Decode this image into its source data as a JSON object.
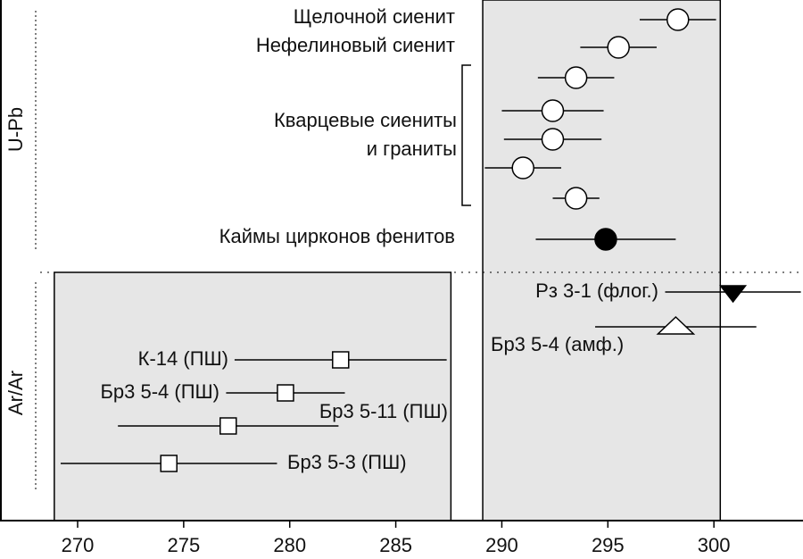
{
  "chart_data": {
    "type": "errorbar",
    "xlim": [
      266.34,
      304.2
    ],
    "xticks": [
      270,
      275,
      280,
      285,
      290,
      295,
      300
    ],
    "groups": [
      {
        "name": "U-Pb"
      },
      {
        "name": "Ar/Ar"
      }
    ],
    "bands": [
      {
        "range": [
          268.9,
          287.6
        ]
      },
      {
        "range": [
          289.1,
          300.3
        ]
      }
    ],
    "series": [
      {
        "name": "Щелочной сиенит",
        "marker": "circle",
        "filled": false,
        "color": "#000000",
        "values": [
          298.3
        ],
        "errors": [
          1.8
        ]
      },
      {
        "name": "Нефелиновый сиенит",
        "marker": "circle",
        "filled": false,
        "color": "#000000",
        "values": [
          295.5
        ],
        "errors": [
          1.8
        ]
      },
      {
        "name": [
          "Кварцевые сиениты",
          "и граниты"
        ],
        "marker": "circle",
        "filled": false,
        "color": "#000000",
        "values": [
          293.5,
          292.4,
          292.4,
          291.0,
          293.5
        ],
        "errors": [
          1.8,
          2.4,
          2.3,
          1.8,
          1.1
        ]
      },
      {
        "name": "Каймы цирконов фенитов",
        "marker": "circle",
        "filled": true,
        "color": "#000000",
        "values": [
          294.9
        ],
        "errors": [
          3.3
        ]
      },
      {
        "name": "Рз 3-1 (флог.)",
        "marker": "triangle-down",
        "filled": true,
        "color": "#000000",
        "values": [
          300.9
        ],
        "errors": [
          3.2
        ]
      },
      {
        "name": "Бр3 5-4 (амф.)",
        "marker": "triangle-up",
        "filled": false,
        "color": "#000000",
        "values": [
          298.2
        ],
        "errors": [
          3.8
        ]
      },
      {
        "name": "К-14 (ПШ)",
        "marker": "square",
        "filled": false,
        "color": "#000000",
        "values": [
          282.4
        ],
        "errors": [
          5.0
        ]
      },
      {
        "name": "Бр3 5-4 (ПШ)",
        "marker": "square",
        "filled": false,
        "color": "#000000",
        "values": [
          279.8
        ],
        "errors": [
          2.8
        ]
      },
      {
        "name": "Бр3 5-11 (ПШ)",
        "marker": "square",
        "filled": false,
        "color": "#000000",
        "values": [
          277.1
        ],
        "errors": [
          5.2
        ]
      },
      {
        "name": "Бр3 5-3 (ПШ)",
        "marker": "square",
        "filled": false,
        "color": "#000000",
        "values": [
          274.3
        ],
        "errors": [
          5.1
        ]
      }
    ]
  }
}
